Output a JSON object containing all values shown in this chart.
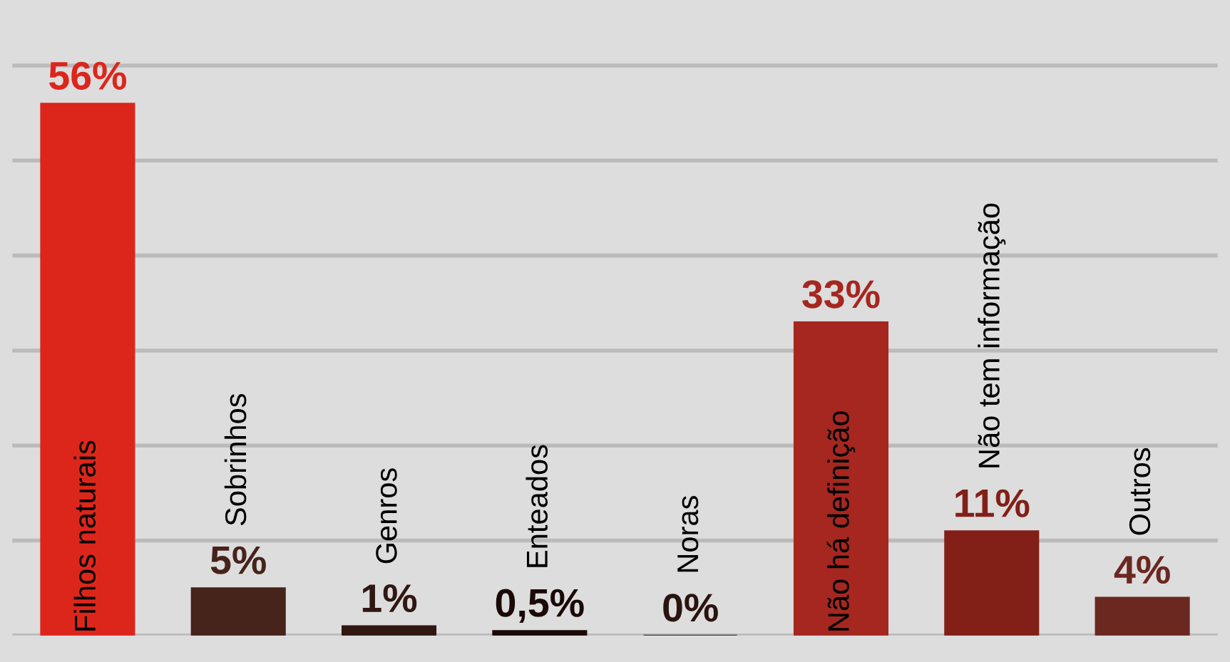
{
  "chart_data": {
    "type": "bar",
    "categories": [
      "Filhos naturais",
      "Sobrinhos",
      "Genros",
      "Enteados",
      "Noras",
      "Não há definição",
      "Não tem informação",
      "Outros"
    ],
    "values": [
      56,
      5,
      1,
      0.5,
      0,
      33,
      11,
      4
    ],
    "value_labels": [
      "56%",
      "5%",
      "1%",
      "0,5%",
      "0%",
      "33%",
      "11%",
      "4%"
    ],
    "colors": [
      "#dc261c",
      "#46231b",
      "#301712",
      "#1a0907",
      "#2a1410",
      "#a52720",
      "#822018",
      "#6a2820"
    ],
    "grid": "y",
    "tick_labels": false
  }
}
